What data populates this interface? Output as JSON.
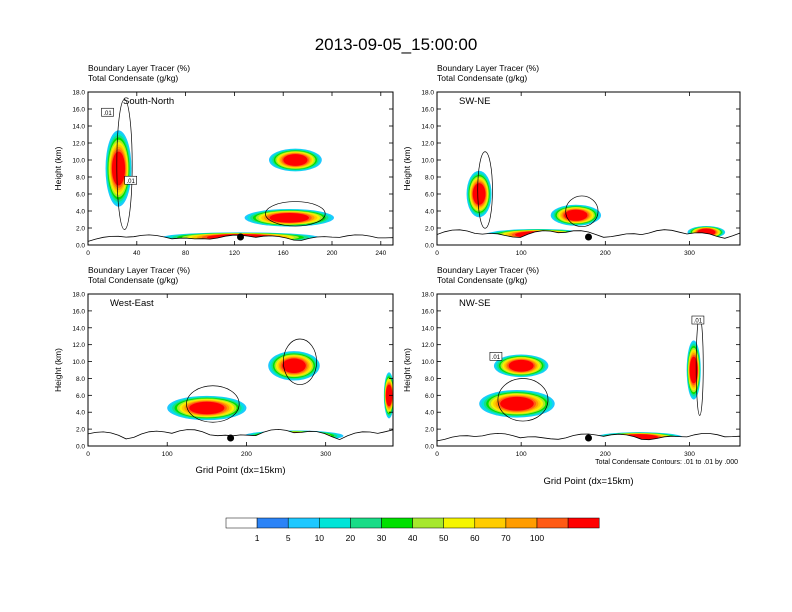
{
  "figure": {
    "title": "2013-09-05_15:00:00",
    "footnote": "Total Condensate Contours: .01 to .01 by .000"
  },
  "colorbar": {
    "colors": [
      "#ffffff",
      "#2b83f6",
      "#1ec8ff",
      "#00e5d8",
      "#19dc87",
      "#00e000",
      "#a6e82d",
      "#f5f500",
      "#ffcc00",
      "#ff9c00",
      "#ff5a14",
      "#ff0000"
    ],
    "labels": [
      "1",
      "5",
      "10",
      "20",
      "30",
      "40",
      "50",
      "60",
      "70",
      "100"
    ]
  },
  "chart_data": [
    {
      "type": "heatmap",
      "cross_section": "South-North",
      "title_line1": "Boundary Layer Tracer   (%)",
      "title_line2": "Total Condensate   (g/kg)",
      "ylabel": "Height (km)",
      "xlabel": "",
      "xlim": [
        0,
        250
      ],
      "ylim": [
        0,
        18
      ],
      "xticks": [
        "0",
        "40",
        "80",
        "120",
        "160",
        "200",
        "240"
      ],
      "yticks": [
        "0.0",
        "2.0",
        "4.0",
        "6.0",
        "8.0",
        "10.0",
        "12.0",
        "14.0",
        "16.0",
        "18.0"
      ],
      "contour_labels": [
        ".01",
        ".01"
      ],
      "marker_x": 125,
      "terrain_max_km": 1.2,
      "tracer_plumes": [
        {
          "x": 25,
          "z": 9.0,
          "w": 18,
          "h": 8.5
        },
        {
          "x": 165,
          "z": 3.2,
          "w": 70,
          "h": 1.6
        },
        {
          "x": 170,
          "z": 10.0,
          "w": 40,
          "h": 2.2
        },
        {
          "x": 125,
          "z": 0.9,
          "w": 125,
          "h": 0.7
        }
      ]
    },
    {
      "type": "heatmap",
      "cross_section": "SW-NE",
      "title_line1": "Boundary Layer Tracer   (%)",
      "title_line2": "Total Condensate   (g/kg)",
      "ylabel": "Height (km)",
      "xlabel": "",
      "xlim": [
        0,
        360
      ],
      "ylim": [
        0,
        18
      ],
      "xticks": [
        "0",
        "100",
        "200",
        "300"
      ],
      "yticks": [
        "0.0",
        "2.0",
        "4.0",
        "6.0",
        "8.0",
        "10.0",
        "12.0",
        "14.0",
        "16.0",
        "18.0"
      ],
      "contour_labels": [],
      "marker_x": 180,
      "terrain_max_km": 1.8,
      "tracer_plumes": [
        {
          "x": 50,
          "z": 6.0,
          "w": 25,
          "h": 5.0
        },
        {
          "x": 165,
          "z": 3.5,
          "w": 55,
          "h": 2.0
        },
        {
          "x": 120,
          "z": 1.2,
          "w": 120,
          "h": 0.9
        },
        {
          "x": 320,
          "z": 1.5,
          "w": 40,
          "h": 1.0
        }
      ]
    },
    {
      "type": "heatmap",
      "cross_section": "West-East",
      "title_line1": "Boundary Layer Tracer   (%)",
      "title_line2": "Total Condensate   (g/kg)",
      "ylabel": "Height (km)",
      "xlabel": "Grid Point (dx=15km)",
      "xlim": [
        0,
        385
      ],
      "ylim": [
        0,
        18
      ],
      "xticks": [
        "0",
        "100",
        "200",
        "300"
      ],
      "yticks": [
        "0.0",
        "2.0",
        "4.0",
        "6.0",
        "8.0",
        "10.0",
        "12.0",
        "14.0",
        "16.0",
        "18.0"
      ],
      "contour_labels": [],
      "marker_x": 180,
      "terrain_max_km": 2.0,
      "tracer_plumes": [
        {
          "x": 150,
          "z": 4.5,
          "w": 95,
          "h": 2.4
        },
        {
          "x": 260,
          "z": 9.5,
          "w": 60,
          "h": 3.0
        },
        {
          "x": 260,
          "z": 1.2,
          "w": 120,
          "h": 0.8
        },
        {
          "x": 380,
          "z": 6.0,
          "w": 8,
          "h": 5.0
        }
      ]
    },
    {
      "type": "heatmap",
      "cross_section": "NW-SE",
      "title_line1": "Boundary Layer Tracer   (%)",
      "title_line2": "Total Condensate   (g/kg)",
      "ylabel": "Height (km)",
      "xlabel": "Grid Point (dx=15km)",
      "xlim": [
        0,
        360
      ],
      "ylim": [
        0,
        18
      ],
      "xticks": [
        "0",
        "100",
        "200",
        "300"
      ],
      "yticks": [
        "0.0",
        "2.0",
        "4.0",
        "6.0",
        "8.0",
        "10.0",
        "12.0",
        "14.0",
        "16.0",
        "18.0"
      ],
      "contour_labels": [
        ".01",
        ".01"
      ],
      "marker_x": 180,
      "terrain_max_km": 1.5,
      "tracer_plumes": [
        {
          "x": 95,
          "z": 5.0,
          "w": 85,
          "h": 2.8
        },
        {
          "x": 305,
          "z": 9.0,
          "w": 12,
          "h": 6.5
        },
        {
          "x": 240,
          "z": 1.0,
          "w": 100,
          "h": 0.8
        },
        {
          "x": 100,
          "z": 9.5,
          "w": 60,
          "h": 2.2
        }
      ]
    }
  ]
}
